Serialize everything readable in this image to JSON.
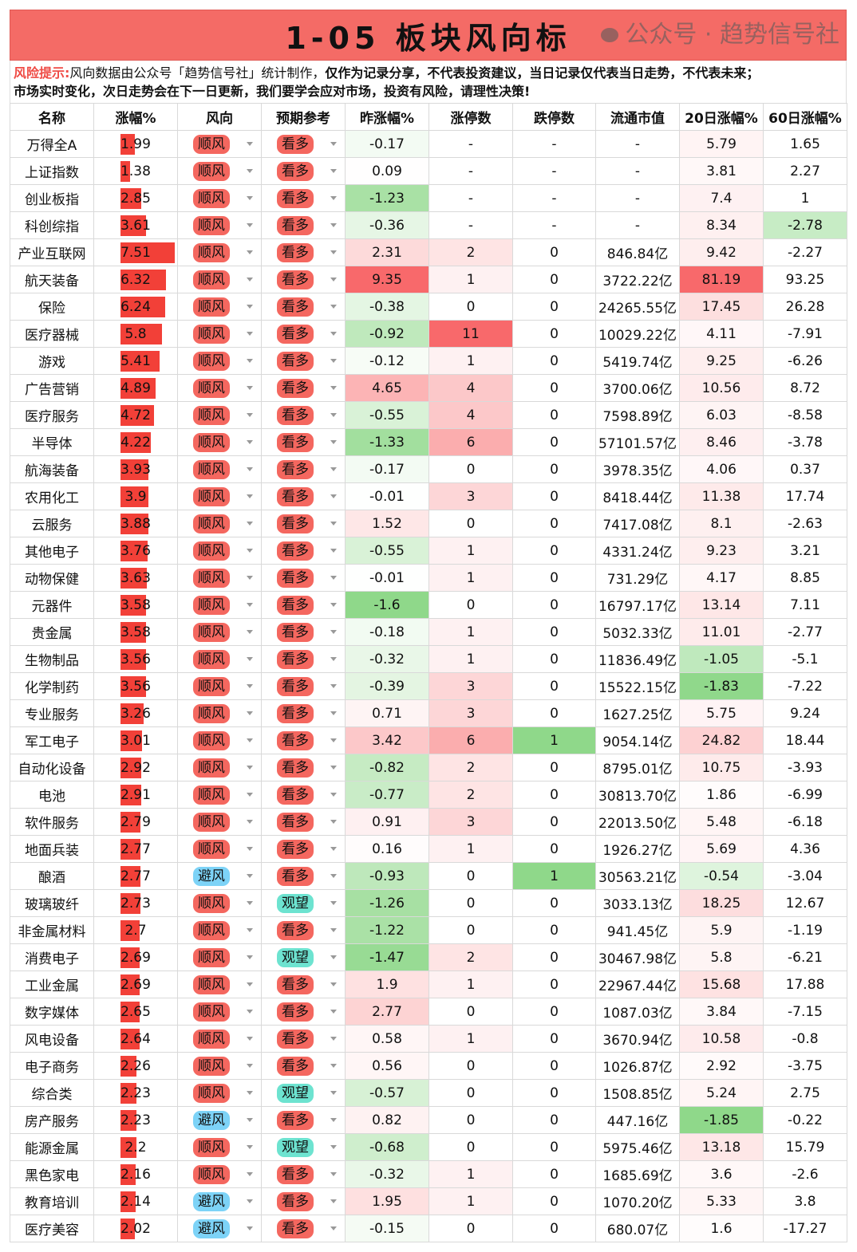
{
  "title": "1-05 板块风向标",
  "notice": {
    "warn": "风险提示:",
    "plain": "风向数据由公众号「趋势信号社」统计制作，",
    "bold1": "仅作为记录分享，不代表投资建议，当日记录仅代表当日走势，不代表未来；",
    "line2": "市场实时变化，次日走势会在下一日更新，我们要学会应对市场，投资有风险，请理性决策!"
  },
  "colors": {
    "bar": "#f24038",
    "shunfeng": "#f4675f",
    "bifeng": "#7dd3f7",
    "kanduo": "#f4675f",
    "guanwang": "#6de3d0",
    "heat_red": "#f8696b",
    "heat_green": "#8fd88a"
  },
  "headers": [
    "名称",
    "涨幅%",
    "风向",
    "预期参考",
    "昨涨幅%",
    "涨停数",
    "跌停数",
    "流通市值",
    "20日涨幅%",
    "60日涨幅%"
  ],
  "rows": [
    [
      "万得全A",
      "1.99",
      "顺风",
      "看多",
      "-0.17",
      "-",
      "-",
      "-",
      "5.79",
      "1.65"
    ],
    [
      "上证指数",
      "1.38",
      "顺风",
      "看多",
      "0.09",
      "-",
      "-",
      "-",
      "3.81",
      "2.27"
    ],
    [
      "创业板指",
      "2.85",
      "顺风",
      "看多",
      "-1.23",
      "-",
      "-",
      "-",
      "7.4",
      "1"
    ],
    [
      "科创综指",
      "3.61",
      "顺风",
      "看多",
      "-0.36",
      "-",
      "-",
      "-",
      "8.34",
      "-2.78"
    ],
    [
      "产业互联网",
      "7.51",
      "顺风",
      "看多",
      "2.31",
      "2",
      "0",
      "846.84亿",
      "9.42",
      "-2.27"
    ],
    [
      "航天装备",
      "6.32",
      "顺风",
      "看多",
      "9.35",
      "1",
      "0",
      "3722.22亿",
      "81.19",
      "93.25"
    ],
    [
      "保险",
      "6.24",
      "顺风",
      "看多",
      "-0.38",
      "0",
      "0",
      "24265.55亿",
      "17.45",
      "26.28"
    ],
    [
      "医疗器械",
      "5.8",
      "顺风",
      "看多",
      "-0.92",
      "11",
      "0",
      "10029.22亿",
      "4.11",
      "-7.91"
    ],
    [
      "游戏",
      "5.41",
      "顺风",
      "看多",
      "-0.12",
      "1",
      "0",
      "5419.74亿",
      "9.25",
      "-6.26"
    ],
    [
      "广告营销",
      "4.89",
      "顺风",
      "看多",
      "4.65",
      "4",
      "0",
      "3700.06亿",
      "10.56",
      "8.72"
    ],
    [
      "医疗服务",
      "4.72",
      "顺风",
      "看多",
      "-0.55",
      "4",
      "0",
      "7598.89亿",
      "6.03",
      "-8.58"
    ],
    [
      "半导体",
      "4.22",
      "顺风",
      "看多",
      "-1.33",
      "6",
      "0",
      "57101.57亿",
      "8.46",
      "-3.78"
    ],
    [
      "航海装备",
      "3.93",
      "顺风",
      "看多",
      "-0.17",
      "0",
      "0",
      "3978.35亿",
      "4.06",
      "0.37"
    ],
    [
      "农用化工",
      "3.9",
      "顺风",
      "看多",
      "-0.01",
      "3",
      "0",
      "8418.44亿",
      "11.38",
      "17.74"
    ],
    [
      "云服务",
      "3.88",
      "顺风",
      "看多",
      "1.52",
      "0",
      "0",
      "7417.08亿",
      "8.1",
      "-2.63"
    ],
    [
      "其他电子",
      "3.76",
      "顺风",
      "看多",
      "-0.55",
      "1",
      "0",
      "4331.24亿",
      "9.23",
      "3.21"
    ],
    [
      "动物保健",
      "3.63",
      "顺风",
      "看多",
      "-0.01",
      "1",
      "0",
      "731.29亿",
      "4.17",
      "8.85"
    ],
    [
      "元器件",
      "3.58",
      "顺风",
      "看多",
      "-1.6",
      "0",
      "0",
      "16797.17亿",
      "13.14",
      "7.11"
    ],
    [
      "贵金属",
      "3.58",
      "顺风",
      "看多",
      "-0.18",
      "1",
      "0",
      "5032.33亿",
      "11.01",
      "-2.77"
    ],
    [
      "生物制品",
      "3.56",
      "顺风",
      "看多",
      "-0.32",
      "1",
      "0",
      "11836.49亿",
      "-1.05",
      "-5.1"
    ],
    [
      "化学制药",
      "3.56",
      "顺风",
      "看多",
      "-0.39",
      "3",
      "0",
      "15522.15亿",
      "-1.83",
      "-7.22"
    ],
    [
      "专业服务",
      "3.26",
      "顺风",
      "看多",
      "0.71",
      "3",
      "0",
      "1627.25亿",
      "5.75",
      "9.24"
    ],
    [
      "军工电子",
      "3.01",
      "顺风",
      "看多",
      "3.42",
      "6",
      "1",
      "9054.14亿",
      "24.82",
      "18.44"
    ],
    [
      "自动化设备",
      "2.92",
      "顺风",
      "看多",
      "-0.82",
      "2",
      "0",
      "8795.01亿",
      "10.75",
      "-3.93"
    ],
    [
      "电池",
      "2.91",
      "顺风",
      "看多",
      "-0.77",
      "2",
      "0",
      "30813.70亿",
      "1.86",
      "-6.99"
    ],
    [
      "软件服务",
      "2.79",
      "顺风",
      "看多",
      "0.91",
      "3",
      "0",
      "22013.50亿",
      "5.48",
      "-6.18"
    ],
    [
      "地面兵装",
      "2.77",
      "顺风",
      "看多",
      "0.16",
      "1",
      "0",
      "1926.27亿",
      "5.69",
      "4.36"
    ],
    [
      "酿酒",
      "2.77",
      "避风",
      "看多",
      "-0.93",
      "0",
      "1",
      "30563.21亿",
      "-0.54",
      "-3.04"
    ],
    [
      "玻璃玻纤",
      "2.73",
      "顺风",
      "观望",
      "-1.26",
      "0",
      "0",
      "3033.13亿",
      "18.25",
      "12.67"
    ],
    [
      "非金属材料",
      "2.7",
      "顺风",
      "看多",
      "-1.22",
      "0",
      "0",
      "941.45亿",
      "5.9",
      "-1.19"
    ],
    [
      "消费电子",
      "2.69",
      "顺风",
      "观望",
      "-1.47",
      "2",
      "0",
      "30467.98亿",
      "5.8",
      "-6.21"
    ],
    [
      "工业金属",
      "2.69",
      "顺风",
      "看多",
      "1.9",
      "1",
      "0",
      "22967.44亿",
      "15.68",
      "17.88"
    ],
    [
      "数字媒体",
      "2.65",
      "顺风",
      "看多",
      "2.77",
      "0",
      "0",
      "1087.03亿",
      "3.84",
      "-7.15"
    ],
    [
      "风电设备",
      "2.64",
      "顺风",
      "看多",
      "0.58",
      "1",
      "0",
      "3670.94亿",
      "10.58",
      "-0.8"
    ],
    [
      "电子商务",
      "2.26",
      "顺风",
      "看多",
      "0.56",
      "0",
      "0",
      "1026.87亿",
      "2.92",
      "-3.75"
    ],
    [
      "综合类",
      "2.23",
      "顺风",
      "观望",
      "-0.57",
      "0",
      "0",
      "1508.85亿",
      "5.24",
      "2.75"
    ],
    [
      "房产服务",
      "2.23",
      "避风",
      "看多",
      "0.82",
      "0",
      "0",
      "447.16亿",
      "-1.85",
      "-0.22"
    ],
    [
      "能源金属",
      "2.2",
      "顺风",
      "观望",
      "-0.68",
      "0",
      "0",
      "5975.46亿",
      "13.18",
      "15.79"
    ],
    [
      "黑色家电",
      "2.16",
      "顺风",
      "看多",
      "-0.32",
      "1",
      "0",
      "1685.69亿",
      "3.6",
      "-2.6"
    ],
    [
      "教育培训",
      "2.14",
      "避风",
      "看多",
      "1.95",
      "1",
      "0",
      "1070.20亿",
      "5.33",
      "3.8"
    ],
    [
      "医疗美容",
      "2.02",
      "避风",
      "看多",
      "-0.15",
      "0",
      "0",
      "680.07亿",
      "1.6",
      "-17.27"
    ]
  ],
  "watermark": "公众号 · 趋势信号社"
}
